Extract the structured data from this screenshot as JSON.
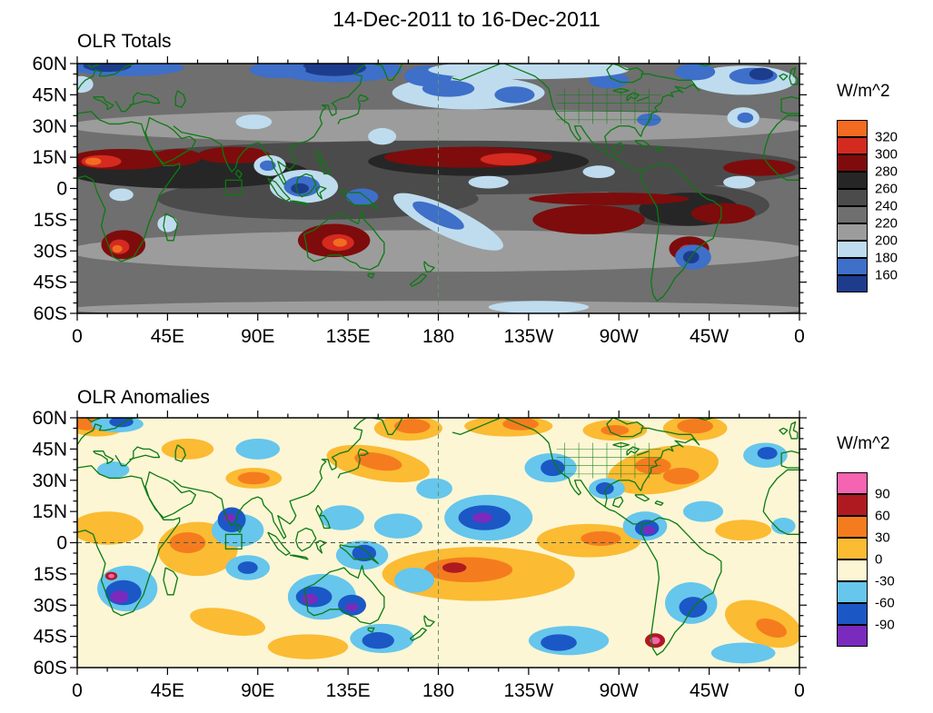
{
  "title": "14-Dec-2011 to 16-Dec-2011",
  "chart_data": {
    "type": "heatmap",
    "subtype": "filled-contour-world-map",
    "projection": "equirectangular",
    "lon_range": [
      0,
      360
    ],
    "lat_range": [
      -60,
      60
    ],
    "x_ticks": [
      0,
      45,
      90,
      135,
      180,
      225,
      270,
      315,
      360
    ],
    "x_tick_labels": [
      "0",
      "45E",
      "90E",
      "135E",
      "180",
      "135W",
      "90W",
      "45W",
      "0"
    ],
    "y_ticks": [
      60,
      45,
      30,
      15,
      0,
      -15,
      -30,
      -45,
      -60
    ],
    "y_tick_labels": [
      "60N",
      "45N",
      "30N",
      "15N",
      "0",
      "15S",
      "30S",
      "45S",
      "60S"
    ],
    "coastline_color": "#0c7a12",
    "panels": [
      {
        "title": "OLR Totals",
        "colorbar": {
          "title": "W/m^2",
          "levels": [
            320,
            300,
            280,
            260,
            240,
            220,
            200,
            180,
            160
          ],
          "colors": [
            "#F26B21",
            "#D42A20",
            "#7E0C0C",
            "#262626",
            "#4B4B4B",
            "#6F6F6F",
            "#9C9C9C",
            "#BFDCEF",
            "#3E6FC9",
            "#1E3C8C"
          ]
        },
        "base_color_index": 5,
        "reference_lines": [
          {
            "orient": "v",
            "value": 180
          }
        ],
        "roi_box": {
          "lon": [
            74,
            82
          ],
          "lat": [
            -3,
            4
          ]
        },
        "features": [
          [
            180,
            30,
            185,
            8,
            0,
            6
          ],
          [
            180,
            -30,
            185,
            10,
            0,
            6
          ],
          [
            180,
            -58,
            185,
            4,
            0,
            6
          ],
          [
            230,
            -57,
            25,
            3,
            0,
            7
          ],
          [
            180,
            10,
            185,
            13,
            0,
            4
          ],
          [
            120,
            -5,
            80,
            10,
            0,
            4
          ],
          [
            300,
            -8,
            45,
            10,
            0,
            4
          ],
          [
            55,
            8,
            60,
            8,
            0,
            3
          ],
          [
            200,
            13,
            55,
            7,
            0,
            3
          ],
          [
            305,
            -10,
            25,
            8,
            0,
            3
          ],
          [
            22,
            14,
            26,
            5,
            0,
            2
          ],
          [
            50,
            15,
            12,
            4,
            0,
            2
          ],
          [
            12,
            13,
            10,
            3,
            0,
            1
          ],
          [
            8,
            13,
            4,
            1.8,
            0,
            0
          ],
          [
            78,
            16,
            18,
            4,
            0,
            2
          ],
          [
            195,
            15,
            42,
            5,
            0,
            2
          ],
          [
            215,
            14,
            14,
            3,
            0,
            1
          ],
          [
            340,
            10,
            18,
            4,
            0,
            2
          ],
          [
            265,
            -5,
            40,
            3,
            0,
            2
          ],
          [
            255,
            -15,
            28,
            7,
            0,
            2
          ],
          [
            322,
            -12,
            16,
            5,
            0,
            2
          ],
          [
            128,
            -25,
            18,
            8,
            0,
            2
          ],
          [
            130,
            -26,
            8,
            4,
            0,
            1
          ],
          [
            131,
            -26,
            3.5,
            2,
            0,
            0
          ],
          [
            23,
            -27,
            11,
            7,
            0,
            2
          ],
          [
            21,
            -28,
            5,
            3.5,
            0,
            1
          ],
          [
            20,
            -29,
            2.5,
            1.8,
            0,
            0
          ],
          [
            305,
            -29,
            10,
            6,
            0,
            2
          ],
          [
            304,
            -30,
            4,
            3,
            0,
            1
          ],
          [
            113,
            1,
            17,
            8,
            0,
            7
          ],
          [
            112,
            1,
            9,
            5,
            0,
            8
          ],
          [
            111,
            0,
            4.5,
            2.5,
            0,
            9
          ],
          [
            96,
            11,
            8,
            5,
            0,
            7
          ],
          [
            95,
            11,
            4,
            2.5,
            0,
            8
          ],
          [
            142,
            -4,
            8,
            4,
            0,
            8
          ],
          [
            185,
            -16,
            30,
            7,
            25,
            7
          ],
          [
            180,
            -13,
            14,
            4,
            25,
            8
          ],
          [
            22,
            -3,
            6,
            3,
            0,
            7
          ],
          [
            45,
            -17,
            5,
            4,
            0,
            7
          ],
          [
            260,
            8,
            8,
            3,
            0,
            7
          ],
          [
            195,
            46,
            38,
            8,
            0,
            7
          ],
          [
            185,
            48,
            13,
            4,
            0,
            8
          ],
          [
            218,
            45,
            10,
            4,
            0,
            8
          ],
          [
            130,
            57,
            32,
            6,
            0,
            8
          ],
          [
            128,
            58,
            16,
            4,
            0,
            9
          ],
          [
            100,
            57,
            14,
            4,
            0,
            8
          ],
          [
            332,
            52,
            26,
            7,
            0,
            7
          ],
          [
            337,
            54,
            12,
            4,
            0,
            8
          ],
          [
            341,
            55,
            6,
            3,
            0,
            9
          ],
          [
            308,
            56,
            10,
            4,
            0,
            8
          ],
          [
            265,
            52,
            10,
            4,
            0,
            8
          ],
          [
            175,
            54,
            12,
            5,
            0,
            8
          ],
          [
            88,
            32,
            9,
            3.5,
            0,
            7
          ],
          [
            285,
            33,
            6,
            3,
            0,
            8
          ],
          [
            332,
            34,
            8,
            5,
            0,
            7
          ],
          [
            333,
            34,
            4,
            2.5,
            0,
            8
          ],
          [
            152,
            25,
            7,
            4,
            0,
            7
          ],
          [
            307,
            -33,
            9,
            6,
            0,
            8
          ],
          [
            306,
            -33,
            4,
            3,
            0,
            9
          ],
          [
            225,
            57,
            50,
            4.5,
            0,
            7
          ],
          [
            25,
            58,
            28,
            4,
            0,
            8
          ],
          [
            15,
            59,
            12,
            3,
            0,
            9
          ],
          [
            2,
            50,
            6,
            4,
            0,
            7
          ],
          [
            205,
            3,
            10,
            3,
            0,
            7
          ],
          [
            330,
            3,
            8,
            3,
            0,
            7
          ]
        ]
      },
      {
        "title": "OLR Anomalies",
        "colorbar": {
          "title": "W/m^2",
          "levels": [
            90,
            60,
            30,
            0,
            -30,
            -60,
            -90
          ],
          "colors": [
            "#F464B0",
            "#AF1A20",
            "#F57C1E",
            "#FBBB33",
            "#FCF6D4",
            "#66C6EC",
            "#1C57C6",
            "#7A2BBE"
          ]
        },
        "base_color_index": 4,
        "reference_lines": [
          {
            "orient": "v",
            "value": 180
          },
          {
            "orient": "h",
            "value": 0
          }
        ],
        "roi_box": {
          "lon": [
            74,
            82
          ],
          "lat": [
            -3,
            4
          ]
        },
        "features": [
          [
            60,
            -3,
            20,
            13,
            0,
            3
          ],
          [
            55,
            0,
            9,
            5,
            0,
            2
          ],
          [
            15,
            7,
            18,
            8,
            0,
            3
          ],
          [
            88,
            31,
            14,
            5,
            0,
            3
          ],
          [
            88,
            31,
            8,
            3,
            0,
            2
          ],
          [
            150,
            38,
            26,
            8,
            10,
            3
          ],
          [
            150,
            39,
            12,
            4,
            10,
            2
          ],
          [
            200,
            -15,
            48,
            13,
            0,
            3
          ],
          [
            195,
            -13,
            22,
            6,
            0,
            2
          ],
          [
            188,
            -12,
            6,
            2.5,
            0,
            1
          ],
          [
            292,
            35,
            28,
            11,
            -10,
            3
          ],
          [
            287,
            37,
            9,
            4,
            0,
            2
          ],
          [
            301,
            32,
            9,
            4,
            0,
            2
          ],
          [
            268,
            54,
            16,
            5,
            0,
            3
          ],
          [
            268,
            54,
            7,
            2.5,
            0,
            2
          ],
          [
            215,
            56,
            22,
            5,
            0,
            3
          ],
          [
            221,
            57,
            9,
            3,
            0,
            2
          ],
          [
            165,
            55,
            17,
            6,
            0,
            3
          ],
          [
            167,
            56,
            9,
            3.5,
            0,
            2
          ],
          [
            308,
            55,
            16,
            6,
            0,
            3
          ],
          [
            308,
            56,
            9,
            3.5,
            0,
            2
          ],
          [
            10,
            56,
            14,
            5,
            0,
            3
          ],
          [
            5,
            57,
            7,
            3,
            0,
            2
          ],
          [
            55,
            45,
            13,
            5,
            0,
            3
          ],
          [
            342,
            -39,
            20,
            10,
            20,
            3
          ],
          [
            346,
            -41,
            8,
            4,
            20,
            2
          ],
          [
            75,
            -38,
            19,
            6,
            10,
            3
          ],
          [
            115,
            -50,
            20,
            6,
            0,
            3
          ],
          [
            255,
            1,
            26,
            8,
            0,
            3
          ],
          [
            261,
            2,
            10,
            3.5,
            0,
            2
          ],
          [
            332,
            6,
            14,
            5,
            0,
            3
          ],
          [
            168,
            -18,
            10,
            6,
            0,
            5
          ],
          [
            25,
            -22,
            15,
            11,
            0,
            5
          ],
          [
            23,
            -24,
            9,
            6,
            0,
            6
          ],
          [
            21,
            -26,
            4.5,
            3,
            0,
            7
          ],
          [
            17,
            -16,
            3,
            2,
            0,
            1
          ],
          [
            17,
            -16,
            1.5,
            1,
            0,
            0
          ],
          [
            80,
            6,
            13,
            8,
            0,
            5
          ],
          [
            77,
            11,
            7,
            6,
            0,
            6
          ],
          [
            76,
            12,
            3,
            2,
            0,
            7
          ],
          [
            85,
            -12,
            11,
            6,
            0,
            5
          ],
          [
            85,
            -12,
            5,
            3,
            0,
            6
          ],
          [
            142,
            -6,
            13,
            7,
            0,
            5
          ],
          [
            143,
            -5,
            6,
            4,
            0,
            6
          ],
          [
            132,
            12,
            11,
            6,
            0,
            5
          ],
          [
            160,
            8,
            12,
            6,
            0,
            5
          ],
          [
            122,
            -26,
            17,
            11,
            0,
            5
          ],
          [
            118,
            -26,
            9,
            5,
            0,
            6
          ],
          [
            116,
            -27,
            4,
            2.5,
            0,
            7
          ],
          [
            137,
            -30,
            7,
            5,
            0,
            6
          ],
          [
            137,
            -31,
            3,
            2,
            0,
            7
          ],
          [
            152,
            -46,
            16,
            7,
            0,
            5
          ],
          [
            150,
            -47,
            8,
            4,
            0,
            6
          ],
          [
            205,
            12,
            22,
            11,
            0,
            5
          ],
          [
            203,
            12,
            13,
            6,
            0,
            6
          ],
          [
            202,
            12,
            5,
            2.5,
            0,
            7
          ],
          [
            178,
            26,
            9,
            5,
            0,
            5
          ],
          [
            236,
            36,
            13,
            7,
            0,
            5
          ],
          [
            237,
            36,
            6,
            4,
            0,
            6
          ],
          [
            283,
            8,
            11,
            7,
            0,
            5
          ],
          [
            284,
            7,
            6,
            4,
            0,
            6
          ],
          [
            285,
            6,
            3,
            2,
            0,
            7
          ],
          [
            264,
            26,
            9,
            5,
            0,
            5
          ],
          [
            263,
            26,
            4.5,
            3,
            0,
            6
          ],
          [
            306,
            -29,
            13,
            10,
            0,
            5
          ],
          [
            307,
            -31,
            7,
            5,
            0,
            6
          ],
          [
            288,
            -47,
            5,
            3.5,
            0,
            1
          ],
          [
            288,
            -47,
            2.5,
            1.7,
            0,
            0
          ],
          [
            245,
            -47,
            20,
            7,
            0,
            5
          ],
          [
            240,
            -48,
            9,
            4,
            0,
            6
          ],
          [
            332,
            -53,
            16,
            5,
            0,
            5
          ],
          [
            312,
            15,
            10,
            5,
            0,
            5
          ],
          [
            343,
            42,
            11,
            6,
            0,
            5
          ],
          [
            344,
            43,
            5,
            3,
            0,
            6
          ],
          [
            20,
            57,
            13,
            4,
            0,
            5
          ],
          [
            22,
            58,
            6,
            2.5,
            0,
            6
          ],
          [
            90,
            45,
            11,
            5,
            0,
            5
          ],
          [
            352,
            8,
            6,
            4,
            0,
            5
          ],
          [
            18,
            35,
            8,
            4,
            0,
            5
          ]
        ]
      }
    ]
  }
}
